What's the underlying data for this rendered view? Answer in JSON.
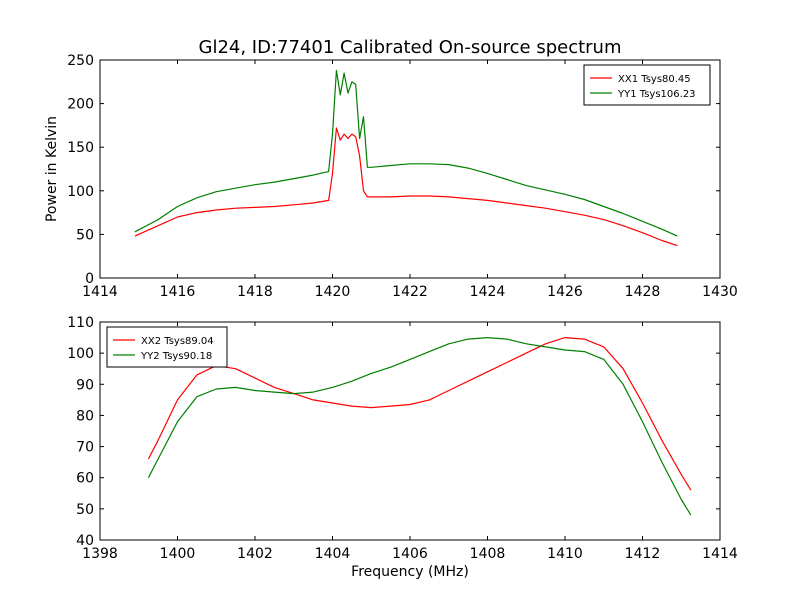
{
  "chart_data": [
    {
      "type": "line",
      "title": "Gl24, ID:77401 Calibrated On-source spectrum",
      "xlabel": "",
      "ylabel": "Power in Kelvin",
      "xlim": [
        1414,
        1430
      ],
      "ylim": [
        0,
        250
      ],
      "xticks": [
        1414,
        1416,
        1418,
        1420,
        1422,
        1424,
        1426,
        1428,
        1430
      ],
      "yticks": [
        0,
        50,
        100,
        150,
        200,
        250
      ],
      "grid": false,
      "legend": "top-right",
      "series": [
        {
          "name": "XX1 Tsys80.45",
          "color": "#ff0000",
          "x": [
            1414.9,
            1415.5,
            1416.0,
            1416.5,
            1417.0,
            1417.5,
            1418.0,
            1418.5,
            1419.0,
            1419.5,
            1419.9,
            1420.0,
            1420.1,
            1420.2,
            1420.3,
            1420.4,
            1420.5,
            1420.6,
            1420.7,
            1420.8,
            1420.9,
            1421.0,
            1421.5,
            1422.0,
            1422.5,
            1423.0,
            1423.5,
            1424.0,
            1424.5,
            1425.0,
            1425.5,
            1426.0,
            1426.5,
            1427.0,
            1427.5,
            1428.0,
            1428.5,
            1428.9
          ],
          "values": [
            48,
            60,
            70,
            75,
            78,
            80,
            81,
            82,
            84,
            86,
            89,
            120,
            172,
            158,
            165,
            160,
            165,
            162,
            140,
            100,
            93,
            93,
            93,
            94,
            94,
            93,
            91,
            89,
            86,
            83,
            80,
            76,
            72,
            67,
            60,
            52,
            43,
            37
          ]
        },
        {
          "name": "YY1 Tsys106.23",
          "color": "#008000",
          "x": [
            1414.9,
            1415.5,
            1416.0,
            1416.5,
            1417.0,
            1417.5,
            1418.0,
            1418.5,
            1419.0,
            1419.5,
            1419.9,
            1420.0,
            1420.1,
            1420.2,
            1420.3,
            1420.4,
            1420.5,
            1420.6,
            1420.7,
            1420.8,
            1420.9,
            1421.0,
            1421.5,
            1422.0,
            1422.5,
            1423.0,
            1423.5,
            1424.0,
            1424.5,
            1425.0,
            1425.5,
            1426.0,
            1426.5,
            1427.0,
            1427.5,
            1428.0,
            1428.5,
            1428.9
          ],
          "values": [
            53,
            67,
            82,
            92,
            99,
            103,
            107,
            110,
            114,
            118,
            122,
            165,
            238,
            210,
            235,
            212,
            225,
            222,
            160,
            185,
            127,
            127,
            129,
            131,
            131,
            130,
            126,
            120,
            113,
            106,
            101,
            96,
            90,
            82,
            74,
            65,
            56,
            48
          ]
        }
      ]
    },
    {
      "type": "line",
      "title": "",
      "xlabel": "Frequency (MHz)",
      "ylabel": "",
      "xlim": [
        1398,
        1414
      ],
      "ylim": [
        40,
        110
      ],
      "xticks": [
        1398,
        1400,
        1402,
        1404,
        1406,
        1408,
        1410,
        1412,
        1414
      ],
      "yticks": [
        40,
        50,
        60,
        70,
        80,
        90,
        100,
        110
      ],
      "grid": false,
      "legend": "top-left",
      "series": [
        {
          "name": "XX2 Tsys89.04",
          "color": "#ff0000",
          "x": [
            1399.25,
            1399.5,
            1400.0,
            1400.5,
            1401.0,
            1401.5,
            1402.0,
            1402.5,
            1403.0,
            1403.5,
            1404.0,
            1404.5,
            1405.0,
            1405.5,
            1406.0,
            1406.5,
            1407.0,
            1407.5,
            1408.0,
            1408.5,
            1409.0,
            1409.5,
            1410.0,
            1410.5,
            1411.0,
            1411.5,
            1412.0,
            1412.5,
            1413.0,
            1413.25
          ],
          "values": [
            66,
            72,
            85,
            93,
            96,
            95,
            92,
            89,
            87,
            85,
            84,
            83,
            82.5,
            83,
            83.5,
            85,
            88,
            91,
            94,
            97,
            100,
            103,
            105,
            104.5,
            102,
            95,
            84,
            72,
            61,
            56
          ]
        },
        {
          "name": "YY2 Tsys90.18",
          "color": "#008000",
          "x": [
            1399.25,
            1399.5,
            1400.0,
            1400.5,
            1401.0,
            1401.5,
            1402.0,
            1402.5,
            1403.0,
            1403.5,
            1404.0,
            1404.5,
            1405.0,
            1405.5,
            1406.0,
            1406.5,
            1407.0,
            1407.5,
            1408.0,
            1408.5,
            1409.0,
            1409.5,
            1410.0,
            1410.5,
            1411.0,
            1411.5,
            1412.0,
            1412.5,
            1413.0,
            1413.25
          ],
          "values": [
            60,
            66,
            78,
            86,
            88.5,
            89,
            88,
            87.5,
            87,
            87.5,
            89,
            91,
            93.5,
            95.5,
            98,
            100.5,
            103,
            104.5,
            105,
            104.5,
            103,
            102,
            101,
            100.5,
            98,
            90,
            78,
            65,
            53,
            48
          ]
        }
      ]
    }
  ]
}
